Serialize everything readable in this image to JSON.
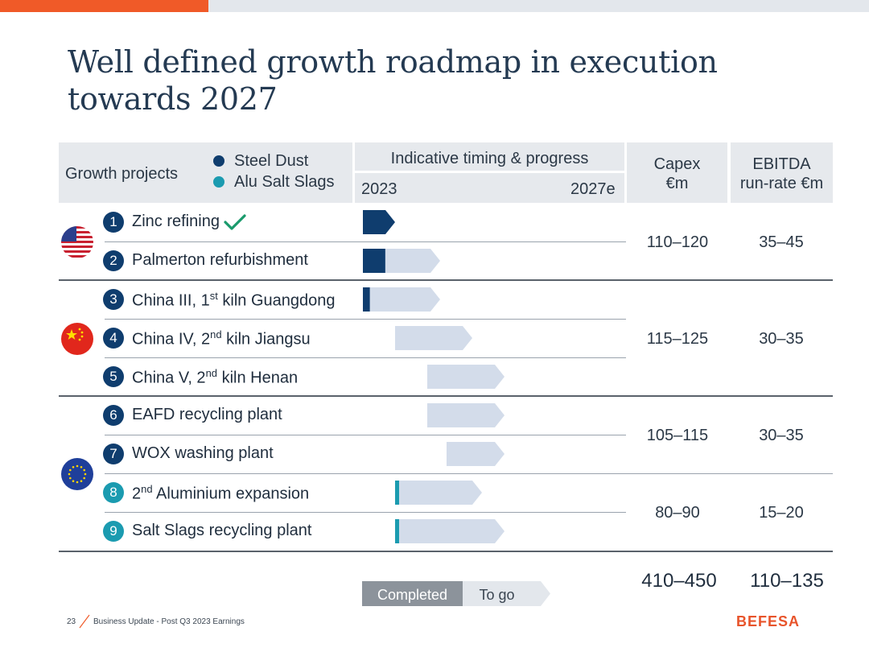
{
  "title_line1": "Well defined growth roadmap in execution",
  "title_line2": "towards 2027",
  "header": {
    "growth_projects": "Growth projects",
    "legend_steel": "Steel Dust",
    "legend_alu": "Alu Salt Slags",
    "timing": "Indicative timing & progress",
    "year_start": "2023",
    "year_end": "2027e",
    "capex_line1": "Capex",
    "capex_line2": "€m",
    "ebitda_line1": "EBITDA",
    "ebitda_line2": "run-rate €m"
  },
  "projects": [
    {
      "num": "1",
      "label": "Zinc refining",
      "sup": "",
      "label_rest": "",
      "type": "steel",
      "completed_check": true
    },
    {
      "num": "2",
      "label": "Palmerton refurbishment",
      "sup": "",
      "label_rest": "",
      "type": "steel"
    },
    {
      "num": "3",
      "label": "China III, 1",
      "sup": "st",
      "label_rest": " kiln Guangdong",
      "type": "steel"
    },
    {
      "num": "4",
      "label": "China IV, 2",
      "sup": "nd",
      "label_rest": " kiln Jiangsu",
      "type": "steel"
    },
    {
      "num": "5",
      "label": "China V, 2",
      "sup": "nd",
      "label_rest": " kiln Henan",
      "type": "steel"
    },
    {
      "num": "6",
      "label": "EAFD recycling plant",
      "sup": "",
      "label_rest": "",
      "type": "steel"
    },
    {
      "num": "7",
      "label": "WOX washing plant",
      "sup": "",
      "label_rest": "",
      "type": "steel"
    },
    {
      "num": "8",
      "label": "2",
      "sup": "nd",
      "label_rest": " Aluminium expansion",
      "type": "alu"
    },
    {
      "num": "9",
      "label": "Salt Slags recycling plant",
      "sup": "",
      "label_rest": "",
      "type": "alu"
    }
  ],
  "groups": [
    {
      "region": "USA",
      "flag": "us-flag-icon",
      "capex": "110–120",
      "ebitda": "35–45"
    },
    {
      "region": "China",
      "flag": "china-flag-icon",
      "capex": "115–125",
      "ebitda": "30–35"
    },
    {
      "region": "EU steel",
      "flag": "eu-flag-icon",
      "capex": "105–115",
      "ebitda": "30–35"
    },
    {
      "region": "EU alu",
      "flag": "",
      "capex": "80–90",
      "ebitda": "15–20"
    }
  ],
  "totals": {
    "capex": "410–450",
    "ebitda": "110–135"
  },
  "legend_bar": {
    "completed": "Completed",
    "to_go": "To go"
  },
  "footer": {
    "page": "23",
    "text": "Business Update - Post Q3 2023 Earnings",
    "logo": "BEFESA"
  },
  "colors": {
    "steel": "#0f3d6e",
    "alu": "#1b9bb0",
    "togo": "#d3dcea",
    "accent": "#f05a28"
  },
  "chart_data": {
    "type": "gantt",
    "title": "Indicative timing & progress",
    "x_range": [
      2023,
      2027
    ],
    "x_labels": [
      "2023",
      "2027e"
    ],
    "bars": [
      {
        "project": "1",
        "start": 2023.0,
        "end": 2023.5,
        "completed_fraction": 1.0
      },
      {
        "project": "2",
        "start": 2023.0,
        "end": 2024.2,
        "completed_fraction": 0.29
      },
      {
        "project": "3",
        "start": 2023.0,
        "end": 2024.2,
        "completed_fraction": 0.09
      },
      {
        "project": "4",
        "start": 2023.5,
        "end": 2024.7,
        "completed_fraction": 0.0
      },
      {
        "project": "5",
        "start": 2024.0,
        "end": 2025.2,
        "completed_fraction": 0.0
      },
      {
        "project": "6",
        "start": 2024.0,
        "end": 2025.2,
        "completed_fraction": 0.0
      },
      {
        "project": "7",
        "start": 2024.3,
        "end": 2025.2,
        "completed_fraction": 0.0
      },
      {
        "project": "8",
        "start": 2023.5,
        "end": 2024.85,
        "completed_fraction": 0.03
      },
      {
        "project": "9",
        "start": 2023.5,
        "end": 2025.2,
        "completed_fraction": 0.03
      }
    ]
  }
}
